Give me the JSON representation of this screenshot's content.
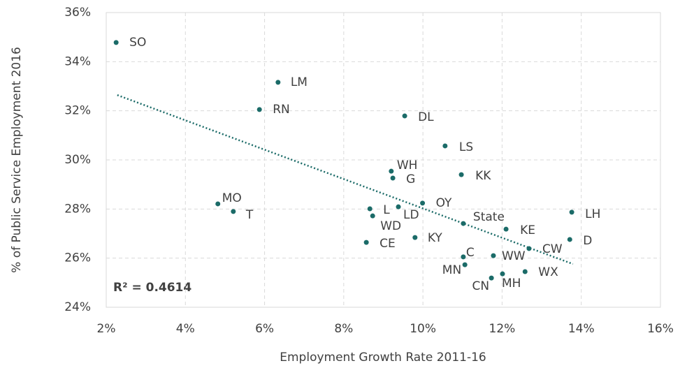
{
  "chart_data": {
    "type": "scatter",
    "x_label": "Employment Growth Rate 2011-16",
    "y_label": "% of Public Service Employment 2016",
    "annotation": "R² = 0.4614",
    "color": "#1b6b68",
    "point_labels": [
      "SO",
      "LM",
      "RN",
      "DL",
      "LS",
      "WH",
      "G",
      "KK",
      "MO",
      "T",
      "OY",
      "L",
      "LD",
      "WD",
      "State",
      "KE",
      "LH",
      "D",
      "KY",
      "CE",
      "CW",
      "C",
      "WW",
      "MN",
      "MH",
      "WX",
      "CN"
    ],
    "x": [
      2.25,
      6.34,
      5.87,
      9.54,
      10.56,
      9.2,
      9.24,
      10.97,
      4.82,
      5.21,
      9.99,
      8.66,
      9.38,
      8.73,
      11.02,
      12.1,
      13.76,
      13.71,
      9.8,
      8.57,
      12.68,
      11.02,
      11.78,
      11.06,
      12.01,
      12.58,
      11.73
    ],
    "values": [
      34.78,
      33.16,
      32.05,
      31.79,
      30.57,
      29.54,
      29.26,
      29.4,
      28.21,
      27.9,
      28.24,
      28.01,
      28.09,
      27.72,
      27.41,
      27.18,
      27.87,
      26.76,
      26.84,
      26.64,
      26.39,
      26.05,
      26.1,
      25.73,
      25.36,
      25.45,
      25.19
    ],
    "trendline": {
      "x": [
        2.28,
        13.79
      ],
      "y": [
        32.64,
        25.76
      ]
    },
    "xlim": [
      2,
      16
    ],
    "xticks": [
      {
        "value": 2,
        "label": "2%"
      },
      {
        "value": 4,
        "label": "4%"
      },
      {
        "value": 6,
        "label": "6%"
      },
      {
        "value": 8,
        "label": "8%"
      },
      {
        "value": 10,
        "label": "10%"
      },
      {
        "value": 12,
        "label": "12%"
      },
      {
        "value": 14,
        "label": "14%"
      },
      {
        "value": 16,
        "label": "16%"
      }
    ],
    "ylim": [
      24,
      36
    ],
    "yticks": [
      {
        "value": 24,
        "label": "24%"
      },
      {
        "value": 26,
        "label": "26%"
      },
      {
        "value": 28,
        "label": "28%"
      },
      {
        "value": 30,
        "label": "30%"
      },
      {
        "value": 32,
        "label": "32%"
      },
      {
        "value": 34,
        "label": "34%"
      },
      {
        "value": 36,
        "label": "36%"
      }
    ],
    "grid": true
  }
}
